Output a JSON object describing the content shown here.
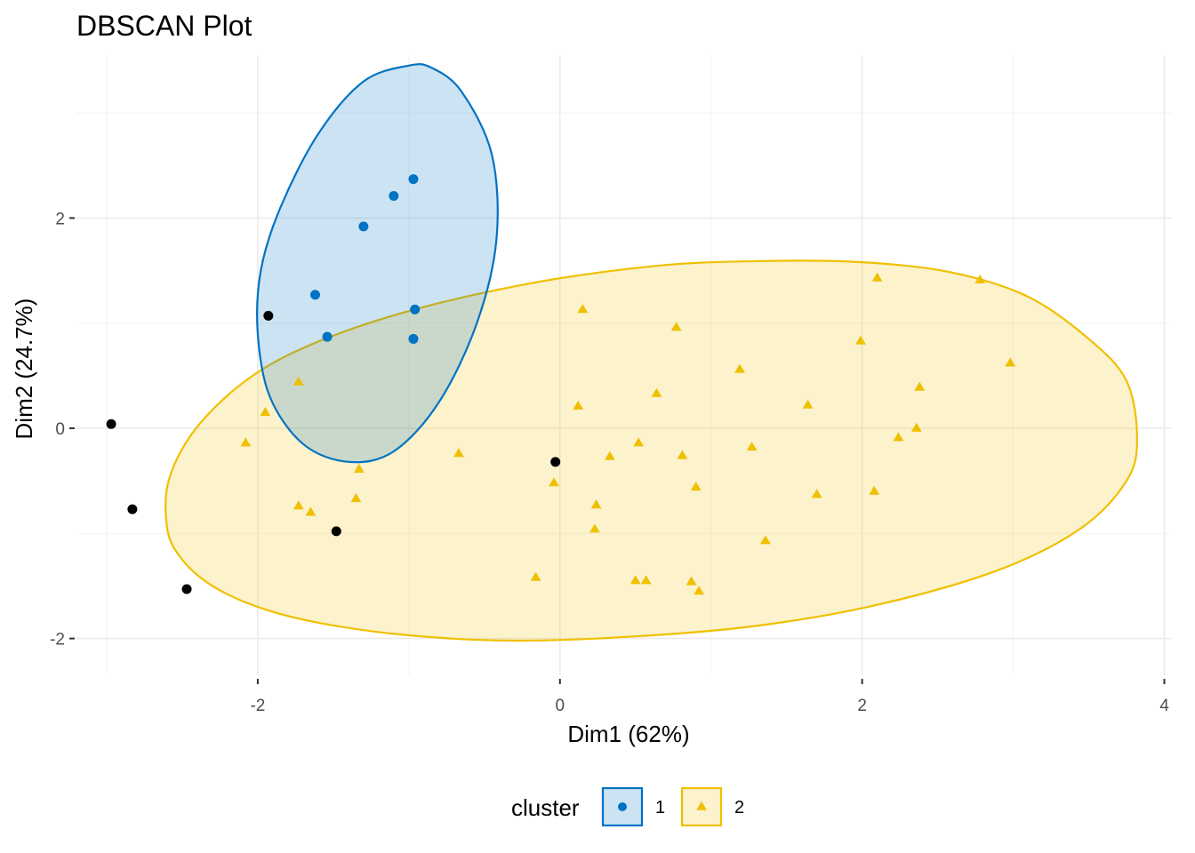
{
  "chart_data": {
    "type": "scatter",
    "title": "DBSCAN Plot",
    "xlabel": "Dim1 (62%)",
    "ylabel": "Dim2 (24.7%)",
    "xlim": [
      -3.2,
      4.05
    ],
    "ylim": [
      -2.35,
      3.55
    ],
    "x_ticks": [
      -2,
      0,
      2,
      4
    ],
    "y_ticks": [
      -2,
      0,
      2
    ],
    "x_tick_labels": [
      "-2",
      "0",
      "2",
      "4"
    ],
    "y_tick_labels": [
      "-2",
      "0",
      "2"
    ],
    "grid": true,
    "legend": {
      "title": "cluster",
      "position": "bottom",
      "entries": [
        "1",
        "2"
      ]
    },
    "series": [
      {
        "name": "1",
        "marker": "circle",
        "color": "#0073C2",
        "fill": "#0073C2",
        "points": [
          [
            -0.97,
            2.37
          ],
          [
            -1.1,
            2.21
          ],
          [
            -1.3,
            1.92
          ],
          [
            -1.62,
            1.27
          ],
          [
            -0.96,
            1.13
          ],
          [
            -1.54,
            0.87
          ],
          [
            -0.97,
            0.85
          ]
        ],
        "hull": [
          [
            -1.0,
            3.45
          ],
          [
            -1.3,
            3.3
          ],
          [
            -1.6,
            2.8
          ],
          [
            -1.85,
            2.1
          ],
          [
            -1.98,
            1.5
          ],
          [
            -2.0,
            0.9
          ],
          [
            -1.92,
            0.3
          ],
          [
            -1.7,
            -0.15
          ],
          [
            -1.4,
            -0.32
          ],
          [
            -1.1,
            -0.22
          ],
          [
            -0.8,
            0.25
          ],
          [
            -0.55,
            1.0
          ],
          [
            -0.42,
            1.8
          ],
          [
            -0.45,
            2.6
          ],
          [
            -0.65,
            3.2
          ],
          [
            -0.85,
            3.43
          ]
        ]
      },
      {
        "name": "2",
        "marker": "triangle",
        "color": "#EFC000",
        "fill": "#EFC000",
        "points": [
          [
            2.1,
            1.43
          ],
          [
            2.78,
            1.41
          ],
          [
            0.15,
            1.13
          ],
          [
            0.77,
            0.96
          ],
          [
            1.99,
            0.83
          ],
          [
            2.98,
            0.62
          ],
          [
            1.19,
            0.56
          ],
          [
            -1.73,
            0.44
          ],
          [
            2.38,
            0.39
          ],
          [
            0.64,
            0.33
          ],
          [
            1.64,
            0.22
          ],
          [
            0.12,
            0.21
          ],
          [
            -1.95,
            0.15
          ],
          [
            2.36,
            0.0
          ],
          [
            2.24,
            -0.09
          ],
          [
            -2.08,
            -0.14
          ],
          [
            0.52,
            -0.14
          ],
          [
            1.27,
            -0.18
          ],
          [
            -0.67,
            -0.24
          ],
          [
            0.33,
            -0.27
          ],
          [
            0.81,
            -0.26
          ],
          [
            -1.33,
            -0.39
          ],
          [
            -0.04,
            -0.52
          ],
          [
            0.9,
            -0.56
          ],
          [
            2.08,
            -0.6
          ],
          [
            1.7,
            -0.63
          ],
          [
            -1.35,
            -0.67
          ],
          [
            0.24,
            -0.73
          ],
          [
            -1.73,
            -0.74
          ],
          [
            -1.65,
            -0.8
          ],
          [
            0.23,
            -0.96
          ],
          [
            1.36,
            -1.07
          ],
          [
            -0.16,
            -1.42
          ],
          [
            0.5,
            -1.45
          ],
          [
            0.57,
            -1.45
          ],
          [
            0.87,
            -1.46
          ],
          [
            0.92,
            -1.55
          ]
        ],
        "hull": [
          [
            -2.6,
            -0.95
          ],
          [
            -2.5,
            -1.25
          ],
          [
            -2.3,
            -1.5
          ],
          [
            -2.0,
            -1.7
          ],
          [
            -1.6,
            -1.85
          ],
          [
            -1.0,
            -1.97
          ],
          [
            -0.3,
            -2.02
          ],
          [
            0.5,
            -1.98
          ],
          [
            1.3,
            -1.88
          ],
          [
            2.1,
            -1.68
          ],
          [
            2.9,
            -1.35
          ],
          [
            3.45,
            -0.95
          ],
          [
            3.75,
            -0.5
          ],
          [
            3.82,
            -0.1
          ],
          [
            3.75,
            0.45
          ],
          [
            3.5,
            0.85
          ],
          [
            3.1,
            1.25
          ],
          [
            2.6,
            1.48
          ],
          [
            2.0,
            1.58
          ],
          [
            1.3,
            1.59
          ],
          [
            0.6,
            1.54
          ],
          [
            -0.3,
            1.35
          ],
          [
            -1.2,
            1.03
          ],
          [
            -1.9,
            0.62
          ],
          [
            -2.35,
            0.1
          ],
          [
            -2.58,
            -0.45
          ]
        ]
      },
      {
        "name": "",
        "marker": "circle",
        "color": "#000000",
        "fill": "#000000",
        "points": [
          [
            -1.93,
            1.07
          ],
          [
            -2.97,
            0.04
          ],
          [
            -0.03,
            -0.32
          ],
          [
            -2.83,
            -0.77
          ],
          [
            -1.48,
            -0.98
          ],
          [
            -2.47,
            -1.53
          ]
        ]
      }
    ]
  }
}
